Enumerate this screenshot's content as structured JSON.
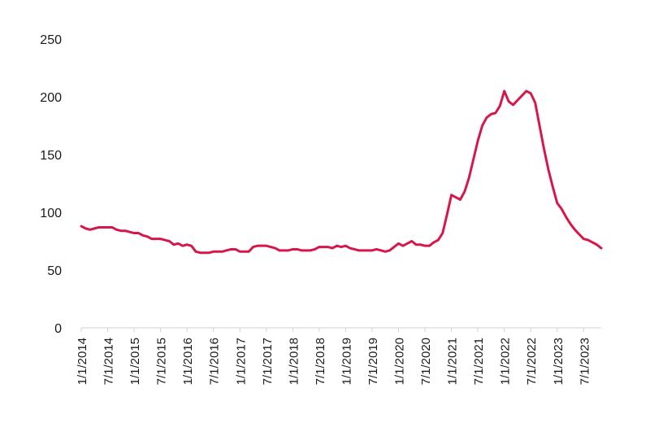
{
  "chart_data": {
    "type": "line",
    "title": "",
    "xlabel": "",
    "ylabel": "",
    "ylim": [
      0,
      250
    ],
    "yticks": [
      0,
      50,
      100,
      150,
      200,
      250
    ],
    "grid": false,
    "legend": "none",
    "x_tick_labels": [
      "1/1/2014",
      "7/1/2014",
      "1/1/2015",
      "7/1/2015",
      "1/1/2016",
      "7/1/2016",
      "1/1/2017",
      "7/1/2017",
      "1/1/2018",
      "7/1/2018",
      "1/1/2019",
      "7/1/2019",
      "1/1/2020",
      "7/1/2020",
      "1/1/2021",
      "7/1/2021",
      "1/1/2022",
      "7/1/2022",
      "1/1/2023",
      "7/1/2023"
    ],
    "series": [
      {
        "color": "#d6174a",
        "x": [
          "2014-01",
          "2014-02",
          "2014-03",
          "2014-04",
          "2014-05",
          "2014-06",
          "2014-07",
          "2014-08",
          "2014-09",
          "2014-10",
          "2014-11",
          "2014-12",
          "2015-01",
          "2015-02",
          "2015-03",
          "2015-04",
          "2015-05",
          "2015-06",
          "2015-07",
          "2015-08",
          "2015-09",
          "2015-10",
          "2015-11",
          "2015-12",
          "2016-01",
          "2016-02",
          "2016-03",
          "2016-04",
          "2016-05",
          "2016-06",
          "2016-07",
          "2016-08",
          "2016-09",
          "2016-10",
          "2016-11",
          "2016-12",
          "2017-01",
          "2017-02",
          "2017-03",
          "2017-04",
          "2017-05",
          "2017-06",
          "2017-07",
          "2017-08",
          "2017-09",
          "2017-10",
          "2017-11",
          "2017-12",
          "2018-01",
          "2018-02",
          "2018-03",
          "2018-04",
          "2018-05",
          "2018-06",
          "2018-07",
          "2018-08",
          "2018-09",
          "2018-10",
          "2018-11",
          "2018-12",
          "2019-01",
          "2019-02",
          "2019-03",
          "2019-04",
          "2019-05",
          "2019-06",
          "2019-07",
          "2019-08",
          "2019-09",
          "2019-10",
          "2019-11",
          "2019-12",
          "2020-01",
          "2020-02",
          "2020-03",
          "2020-04",
          "2020-05",
          "2020-06",
          "2020-07",
          "2020-08",
          "2020-09",
          "2020-10",
          "2020-11",
          "2020-12",
          "2021-01",
          "2021-02",
          "2021-03",
          "2021-04",
          "2021-05",
          "2021-06",
          "2021-07",
          "2021-08",
          "2021-09",
          "2021-10",
          "2021-11",
          "2021-12",
          "2022-01",
          "2022-02",
          "2022-03",
          "2022-04",
          "2022-05",
          "2022-06",
          "2022-07",
          "2022-08",
          "2022-09",
          "2022-10",
          "2022-11",
          "2022-12",
          "2023-01",
          "2023-02",
          "2023-03",
          "2023-04",
          "2023-05",
          "2023-06",
          "2023-07",
          "2023-08",
          "2023-09",
          "2023-10",
          "2023-11"
        ],
        "values": [
          88,
          86,
          85,
          86,
          87,
          87,
          87,
          87,
          85,
          84,
          84,
          83,
          82,
          82,
          80,
          79,
          77,
          77,
          77,
          76,
          75,
          72,
          73,
          71,
          72,
          71,
          66,
          65,
          65,
          65,
          66,
          66,
          66,
          67,
          68,
          68,
          66,
          66,
          66,
          70,
          71,
          71,
          71,
          70,
          69,
          67,
          67,
          67,
          68,
          68,
          67,
          67,
          67,
          68,
          70,
          70,
          70,
          69,
          71,
          70,
          71,
          69,
          68,
          67,
          67,
          67,
          67,
          68,
          67,
          66,
          67,
          70,
          73,
          71,
          73,
          75,
          72,
          72,
          71,
          71,
          74,
          76,
          82,
          98,
          115,
          113,
          111,
          118,
          130,
          146,
          162,
          175,
          182,
          185,
          186,
          192,
          205,
          196,
          193,
          197,
          201,
          205,
          203,
          195,
          175,
          155,
          137,
          122,
          108,
          103,
          96,
          90,
          85,
          81,
          77,
          76,
          74,
          72,
          69
        ]
      }
    ]
  }
}
